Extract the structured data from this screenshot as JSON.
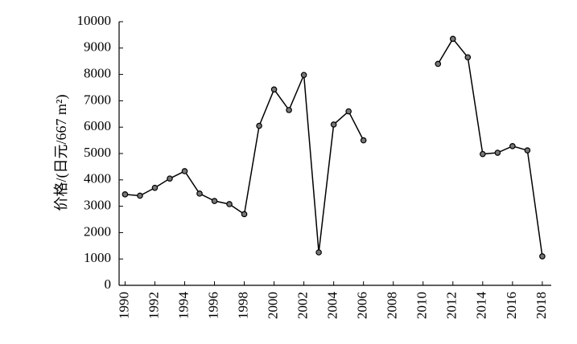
{
  "chart_data": {
    "type": "line",
    "y_label": "价格/(日元/667 m²)",
    "x": [
      1990,
      1991,
      1992,
      1993,
      1994,
      1995,
      1996,
      1997,
      1998,
      1999,
      2000,
      2001,
      2002,
      2003,
      2004,
      2005,
      2006,
      2007,
      2008,
      2009,
      2010,
      2011,
      2012,
      2013,
      2014,
      2015,
      2016,
      2017,
      2018
    ],
    "values": [
      3450,
      3400,
      3700,
      4050,
      4330,
      3480,
      3200,
      3080,
      2700,
      6050,
      7430,
      6650,
      7980,
      1250,
      6100,
      6600,
      5500,
      null,
      null,
      null,
      null,
      8400,
      9350,
      8650,
      4980,
      5030,
      5280,
      5120,
      1100
    ],
    "color": "#000000",
    "xlim": [
      1989.6,
      2018.6
    ],
    "xticks": [
      1990,
      1992,
      1994,
      1996,
      1998,
      2000,
      2002,
      2004,
      2006,
      2008,
      2010,
      2012,
      2014,
      2016,
      2018
    ],
    "ylim": [
      0,
      10000
    ],
    "yticks": [
      0,
      1000,
      2000,
      3000,
      4000,
      5000,
      6000,
      7000,
      8000,
      9000,
      10000
    ]
  }
}
